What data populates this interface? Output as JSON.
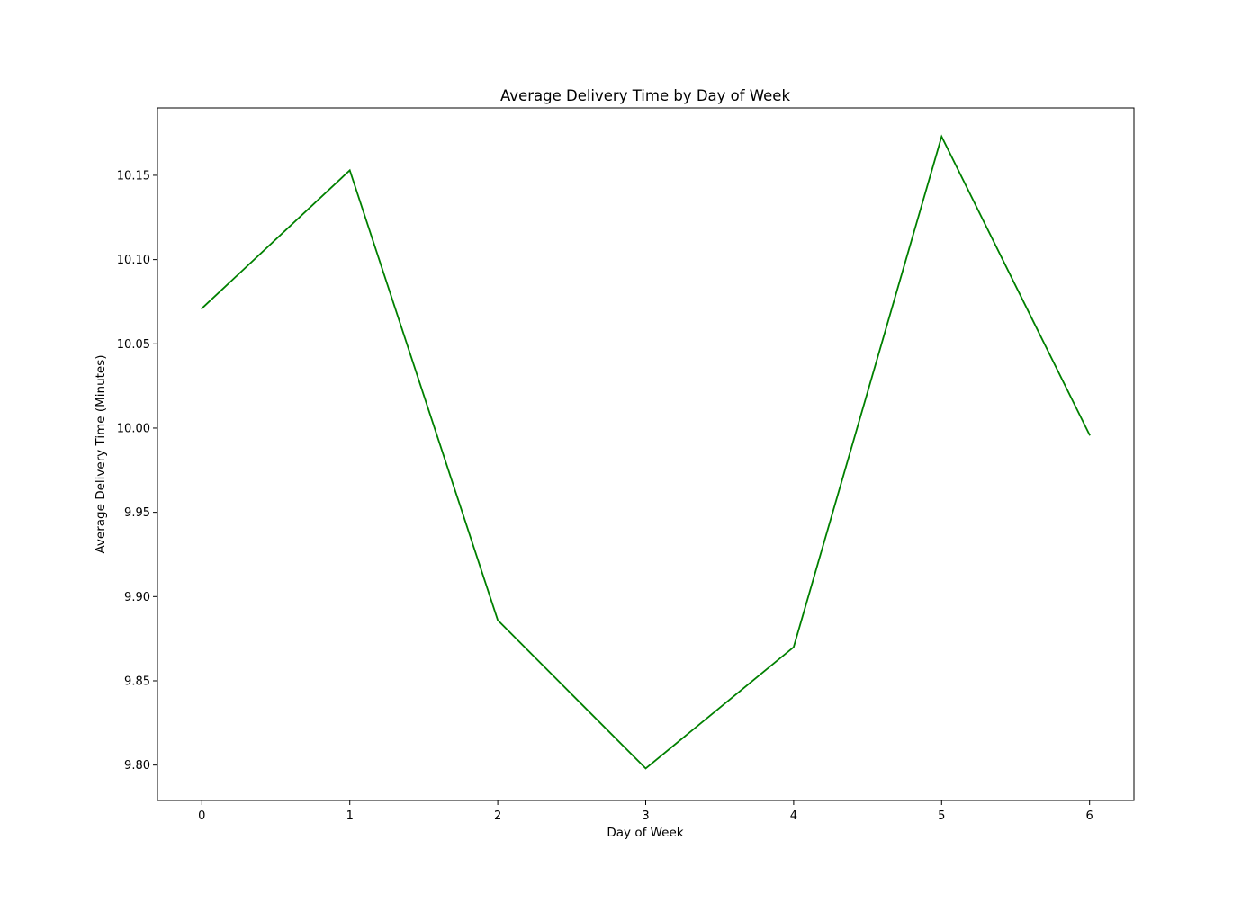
{
  "chart_data": {
    "type": "line",
    "title": "Average Delivery Time by Day of Week",
    "xlabel": "Day of Week",
    "ylabel": "Average Delivery Time (Minutes)",
    "x": [
      0,
      1,
      2,
      3,
      4,
      5,
      6
    ],
    "series": [
      {
        "values": [
          10.071,
          10.153,
          9.886,
          9.798,
          9.87,
          10.173,
          9.996
        ],
        "color": "#008000"
      }
    ],
    "xlim": [
      -0.3,
      6.3
    ],
    "ylim": [
      9.779,
      10.19
    ],
    "xticks": [
      0,
      1,
      2,
      3,
      4,
      5,
      6
    ],
    "xtick_labels": [
      "0",
      "1",
      "2",
      "3",
      "4",
      "5",
      "6"
    ],
    "yticks": [
      9.8,
      9.85,
      9.9,
      9.95,
      10.0,
      10.05,
      10.1,
      10.15
    ],
    "ytick_labels": [
      "9.80",
      "9.85",
      "9.90",
      "9.95",
      "10.00",
      "10.05",
      "10.10",
      "10.15"
    ],
    "grid": false,
    "legend": "none"
  }
}
